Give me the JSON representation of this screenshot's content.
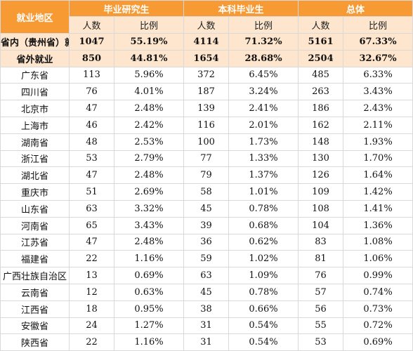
{
  "header": {
    "region": "就业地区",
    "groups": [
      "毕业研究生",
      "本科毕业生",
      "总体"
    ],
    "sub": [
      "人数",
      "比例"
    ]
  },
  "summary": [
    {
      "region": "省内（贵州省）就业",
      "g": [
        "1047",
        "55.19%"
      ],
      "u": [
        "4114",
        "71.32%"
      ],
      "t": [
        "5161",
        "67.33%"
      ]
    },
    {
      "region": "省外就业",
      "g": [
        "850",
        "44.81%"
      ],
      "u": [
        "1654",
        "28.68%"
      ],
      "t": [
        "2504",
        "32.67%"
      ]
    }
  ],
  "rows": [
    {
      "region": "广东省",
      "g": [
        "113",
        "5.96%"
      ],
      "u": [
        "372",
        "6.45%"
      ],
      "t": [
        "485",
        "6.33%"
      ]
    },
    {
      "region": "四川省",
      "g": [
        "76",
        "4.01%"
      ],
      "u": [
        "187",
        "3.24%"
      ],
      "t": [
        "263",
        "3.43%"
      ]
    },
    {
      "region": "北京市",
      "g": [
        "47",
        "2.48%"
      ],
      "u": [
        "139",
        "2.41%"
      ],
      "t": [
        "186",
        "2.43%"
      ]
    },
    {
      "region": "上海市",
      "g": [
        "46",
        "2.42%"
      ],
      "u": [
        "116",
        "2.01%"
      ],
      "t": [
        "162",
        "2.11%"
      ]
    },
    {
      "region": "湖南省",
      "g": [
        "48",
        "2.53%"
      ],
      "u": [
        "100",
        "1.73%"
      ],
      "t": [
        "148",
        "1.93%"
      ]
    },
    {
      "region": "浙江省",
      "g": [
        "53",
        "2.79%"
      ],
      "u": [
        "77",
        "1.33%"
      ],
      "t": [
        "130",
        "1.70%"
      ]
    },
    {
      "region": "湖北省",
      "g": [
        "47",
        "2.48%"
      ],
      "u": [
        "79",
        "1.37%"
      ],
      "t": [
        "126",
        "1.64%"
      ]
    },
    {
      "region": "重庆市",
      "g": [
        "51",
        "2.69%"
      ],
      "u": [
        "58",
        "1.01%"
      ],
      "t": [
        "109",
        "1.42%"
      ]
    },
    {
      "region": "山东省",
      "g": [
        "63",
        "3.32%"
      ],
      "u": [
        "45",
        "0.78%"
      ],
      "t": [
        "108",
        "1.41%"
      ]
    },
    {
      "region": "河南省",
      "g": [
        "65",
        "3.43%"
      ],
      "u": [
        "39",
        "0.68%"
      ],
      "t": [
        "104",
        "1.36%"
      ]
    },
    {
      "region": "江苏省",
      "g": [
        "47",
        "2.48%"
      ],
      "u": [
        "36",
        "0.62%"
      ],
      "t": [
        "83",
        "1.08%"
      ]
    },
    {
      "region": "福建省",
      "g": [
        "22",
        "1.16%"
      ],
      "u": [
        "59",
        "1.02%"
      ],
      "t": [
        "81",
        "1.06%"
      ]
    },
    {
      "region": "广西壮族自治区",
      "g": [
        "13",
        "0.69%"
      ],
      "u": [
        "63",
        "1.09%"
      ],
      "t": [
        "76",
        "0.99%"
      ]
    },
    {
      "region": "云南省",
      "g": [
        "12",
        "0.63%"
      ],
      "u": [
        "45",
        "0.78%"
      ],
      "t": [
        "57",
        "0.74%"
      ]
    },
    {
      "region": "江西省",
      "g": [
        "18",
        "0.95%"
      ],
      "u": [
        "38",
        "0.66%"
      ],
      "t": [
        "56",
        "0.73%"
      ]
    },
    {
      "region": "安徽省",
      "g": [
        "24",
        "1.27%"
      ],
      "u": [
        "31",
        "0.54%"
      ],
      "t": [
        "55",
        "0.72%"
      ]
    },
    {
      "region": "陕西省",
      "g": [
        "22",
        "1.16%"
      ],
      "u": [
        "31",
        "0.54%"
      ],
      "t": [
        "53",
        "0.69%"
      ]
    }
  ],
  "colors": {
    "header_bg": "#f79a33",
    "subheader_bg": "#fde6cd",
    "header_text": "#ffffff",
    "border": "#d9d9d9"
  }
}
